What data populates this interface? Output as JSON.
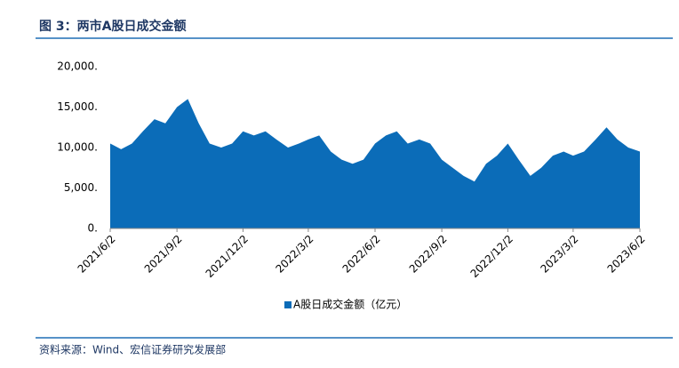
{
  "header": {
    "title": "图 3：两市A股日成交金额"
  },
  "chart_data": {
    "type": "area",
    "x": [
      "2021/6/2",
      "2021/6/17",
      "2021/7/2",
      "2021/7/17",
      "2021/8/2",
      "2021/8/17",
      "2021/9/2",
      "2021/9/17",
      "2021/10/2",
      "2021/10/17",
      "2021/11/2",
      "2021/11/17",
      "2021/12/2",
      "2021/12/17",
      "2022/1/2",
      "2022/1/17",
      "2022/2/2",
      "2022/2/17",
      "2022/3/2",
      "2022/3/17",
      "2022/4/2",
      "2022/4/17",
      "2022/5/2",
      "2022/5/17",
      "2022/6/2",
      "2022/6/17",
      "2022/7/2",
      "2022/7/17",
      "2022/8/2",
      "2022/8/17",
      "2022/9/2",
      "2022/9/17",
      "2022/10/2",
      "2022/10/17",
      "2022/11/2",
      "2022/11/17",
      "2022/12/2",
      "2022/12/17",
      "2023/1/2",
      "2023/1/17",
      "2023/2/2",
      "2023/2/17",
      "2023/3/2",
      "2023/3/17",
      "2023/4/2",
      "2023/4/17",
      "2023/5/2",
      "2023/5/17",
      "2023/6/2"
    ],
    "series": [
      {
        "name": "A股日成交金额（亿元）",
        "color": "#0b6cb8",
        "values": [
          10500,
          9800,
          10500,
          12000,
          13500,
          13000,
          15000,
          16000,
          13000,
          10500,
          10000,
          10500,
          12000,
          11500,
          12000,
          11000,
          10000,
          10500,
          11000,
          11500,
          9500,
          8500,
          8000,
          8500,
          10500,
          11500,
          12000,
          10500,
          11000,
          10500,
          8500,
          7500,
          6500,
          5800,
          8000,
          9000,
          10500,
          8500,
          6500,
          7500,
          9000,
          9500,
          9000,
          9500,
          11000,
          12500,
          11000,
          10000,
          9500
        ]
      }
    ],
    "xlim": [
      "2021/6/2",
      "2023/6/2"
    ],
    "xticks": [
      "2021/6/2",
      "2021/9/2",
      "2021/12/2",
      "2022/3/2",
      "2022/6/2",
      "2022/9/2",
      "2022/12/2",
      "2023/3/2",
      "2023/6/2"
    ],
    "ylim": [
      0,
      20000
    ],
    "yticks": [
      {
        "value": 0,
        "label": "0."
      },
      {
        "value": 5000,
        "label": "5,000."
      },
      {
        "value": 10000,
        "label": "10,000."
      },
      {
        "value": 15000,
        "label": "15,000."
      },
      {
        "value": 20000,
        "label": "20,000."
      }
    ],
    "legend": "bottom"
  },
  "footer": {
    "source": "资料来源：Wind、宏信证券研究发展部"
  }
}
